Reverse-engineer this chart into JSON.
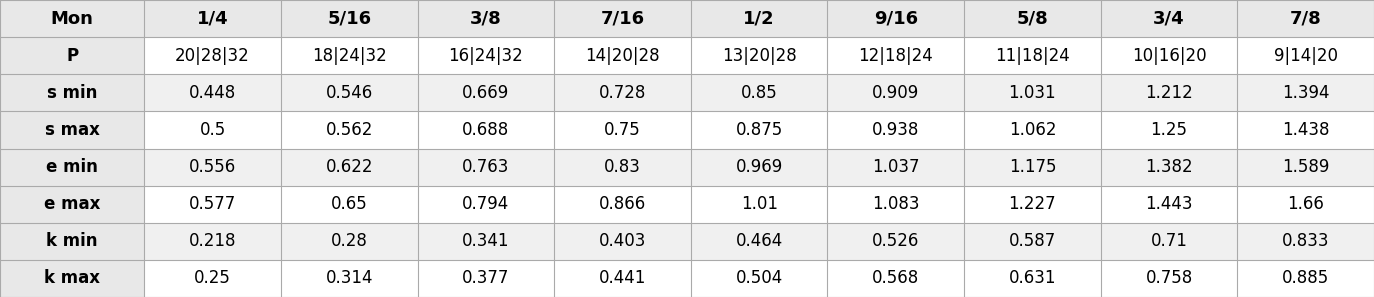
{
  "col_headers": [
    "Mon",
    "1/4",
    "5/16",
    "3/8",
    "7/16",
    "1/2",
    "9/16",
    "5/8",
    "3/4",
    "7/8"
  ],
  "rows": [
    [
      "P",
      "20|28|32",
      "18|24|32",
      "16|24|32",
      "14|20|28",
      "13|20|28",
      "12|18|24",
      "11|18|24",
      "10|16|20",
      "9|14|20"
    ],
    [
      "s min",
      "0.448",
      "0.546",
      "0.669",
      "0.728",
      "0.85",
      "0.909",
      "1.031",
      "1.212",
      "1.394"
    ],
    [
      "s max",
      "0.5",
      "0.562",
      "0.688",
      "0.75",
      "0.875",
      "0.938",
      "1.062",
      "1.25",
      "1.438"
    ],
    [
      "e min",
      "0.556",
      "0.622",
      "0.763",
      "0.83",
      "0.969",
      "1.037",
      "1.175",
      "1.382",
      "1.589"
    ],
    [
      "e max",
      "0.577",
      "0.65",
      "0.794",
      "0.866",
      "1.01",
      "1.083",
      "1.227",
      "1.443",
      "1.66"
    ],
    [
      "k min",
      "0.218",
      "0.28",
      "0.341",
      "0.403",
      "0.464",
      "0.526",
      "0.587",
      "0.71",
      "0.833"
    ],
    [
      "k max",
      "0.25",
      "0.314",
      "0.377",
      "0.441",
      "0.504",
      "0.568",
      "0.631",
      "0.758",
      "0.885"
    ]
  ],
  "header_bg": "#e8e8e8",
  "row_bg_odd": "#ffffff",
  "row_bg_even": "#f0f0f0",
  "header_fontsize": 13,
  "cell_fontsize": 12,
  "bold_col0": true,
  "bold_header": true,
  "line_color": "#aaaaaa",
  "text_color": "#000000",
  "fig_width": 13.74,
  "fig_height": 2.97,
  "dpi": 100
}
